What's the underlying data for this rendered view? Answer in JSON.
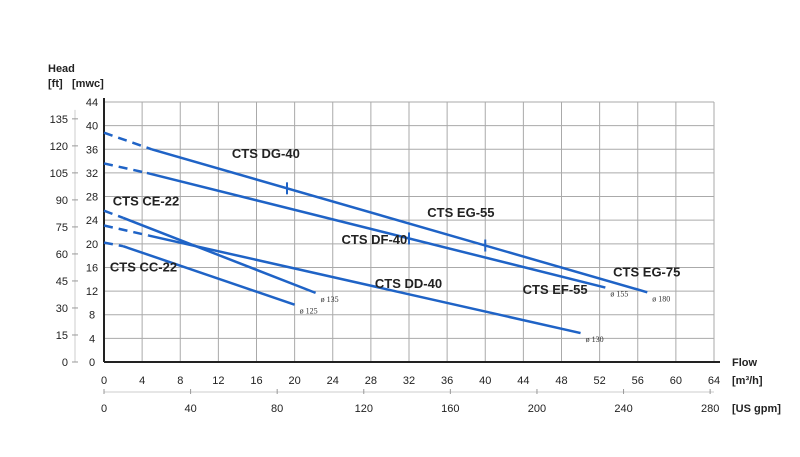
{
  "chart_data": {
    "type": "line",
    "xlabel": "Flow",
    "x_unit": "[m³/h]",
    "x2_unit": "[US gpm]",
    "ylabel": "Head",
    "y_unit_left": "[ft]",
    "y_unit_right": "[mwc]",
    "xlim": [
      0,
      64
    ],
    "ylim": [
      0,
      44
    ],
    "grid": true,
    "x_ticks": [
      0,
      4,
      8,
      12,
      16,
      20,
      24,
      28,
      32,
      36,
      40,
      44,
      48,
      52,
      56,
      60,
      64
    ],
    "x2_ticks": [
      0,
      40,
      80,
      120,
      160,
      200,
      240,
      280
    ],
    "y_ticks": [
      0,
      4,
      8,
      12,
      16,
      20,
      24,
      28,
      32,
      36,
      40,
      44
    ],
    "y_ft_ticks": [
      0,
      15,
      30,
      45,
      60,
      75,
      90,
      105,
      120,
      135
    ],
    "line_color": "#1f63c6",
    "curves": [
      {
        "diameter": "ø 180",
        "dashed": [
          [
            0,
            38.8
          ],
          [
            5,
            36
          ]
        ],
        "solid": [
          [
            5,
            36
          ],
          [
            57,
            11.8
          ]
        ],
        "marks": [
          19.2,
          40
        ]
      },
      {
        "diameter": "ø 155",
        "dashed": [
          [
            0,
            33.6
          ],
          [
            4.5,
            32
          ]
        ],
        "solid": [
          [
            4.5,
            32
          ],
          [
            52.6,
            12.6
          ]
        ],
        "marks": [
          32
        ]
      },
      {
        "diameter": "ø 135",
        "dashed": [
          [
            0,
            25.6
          ],
          [
            2,
            24.4
          ]
        ],
        "solid": [
          [
            2,
            24.4
          ],
          [
            22.2,
            11.7
          ]
        ],
        "marks": []
      },
      {
        "diameter": "ø 130",
        "dashed": [
          [
            0,
            23.1
          ],
          [
            4.7,
            21.4
          ]
        ],
        "solid": [
          [
            4.7,
            21.4
          ],
          [
            50,
            4.9
          ]
        ],
        "marks": []
      },
      {
        "diameter": "ø 125",
        "dashed": [
          [
            0,
            20.2
          ],
          [
            2,
            19.6
          ]
        ],
        "solid": [
          [
            2,
            19.6
          ],
          [
            20,
            9.7
          ]
        ],
        "marks": []
      }
    ],
    "annotations": [
      {
        "text": "CTS DG-40",
        "x": 13,
        "y": 34.5
      },
      {
        "text": "CTS EG-55",
        "x": 33.5,
        "y": 24.5
      },
      {
        "text": "CTS DF-40",
        "x": 24.5,
        "y": 20
      },
      {
        "text": "CTS EG-75",
        "x": 53,
        "y": 14.5
      },
      {
        "text": "CTS EF-55",
        "x": 43.5,
        "y": 11.5
      },
      {
        "text": "CTS CE-22",
        "x": 0.5,
        "y": 26.5
      },
      {
        "text": "CTS CC-22",
        "x": 0.2,
        "y": 15.3
      },
      {
        "text": "CTS DD-40",
        "x": 28,
        "y": 12.5
      }
    ]
  }
}
